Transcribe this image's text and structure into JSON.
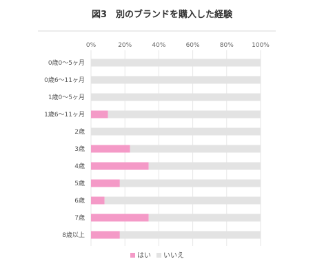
{
  "chart_data": {
    "type": "bar",
    "orientation": "horizontal",
    "stacked": "percent",
    "title": "図3　別のブランドを購入した経験",
    "categories": [
      "0歳0〜5ヶ月",
      "0歳6〜11ヶ月",
      "1歳0〜5ヶ月",
      "1歳6〜11ヶ月",
      "2歳",
      "3歳",
      "4歳",
      "5歳",
      "6歳",
      "7歳",
      "8歳以上"
    ],
    "series": [
      {
        "name": "はい",
        "color": "#f49ac7",
        "values": [
          0,
          0,
          0,
          10,
          0,
          23,
          34,
          17,
          8,
          34,
          17
        ]
      },
      {
        "name": "いいえ",
        "color": "#e3e3e3",
        "values": [
          100,
          100,
          100,
          90,
          100,
          77,
          66,
          83,
          92,
          66,
          83
        ]
      }
    ],
    "x_ticks": [
      "0%",
      "20%",
      "40%",
      "60%",
      "80%",
      "100%"
    ],
    "xlim": [
      0,
      100
    ],
    "grid": true,
    "legend_position": "bottom"
  }
}
